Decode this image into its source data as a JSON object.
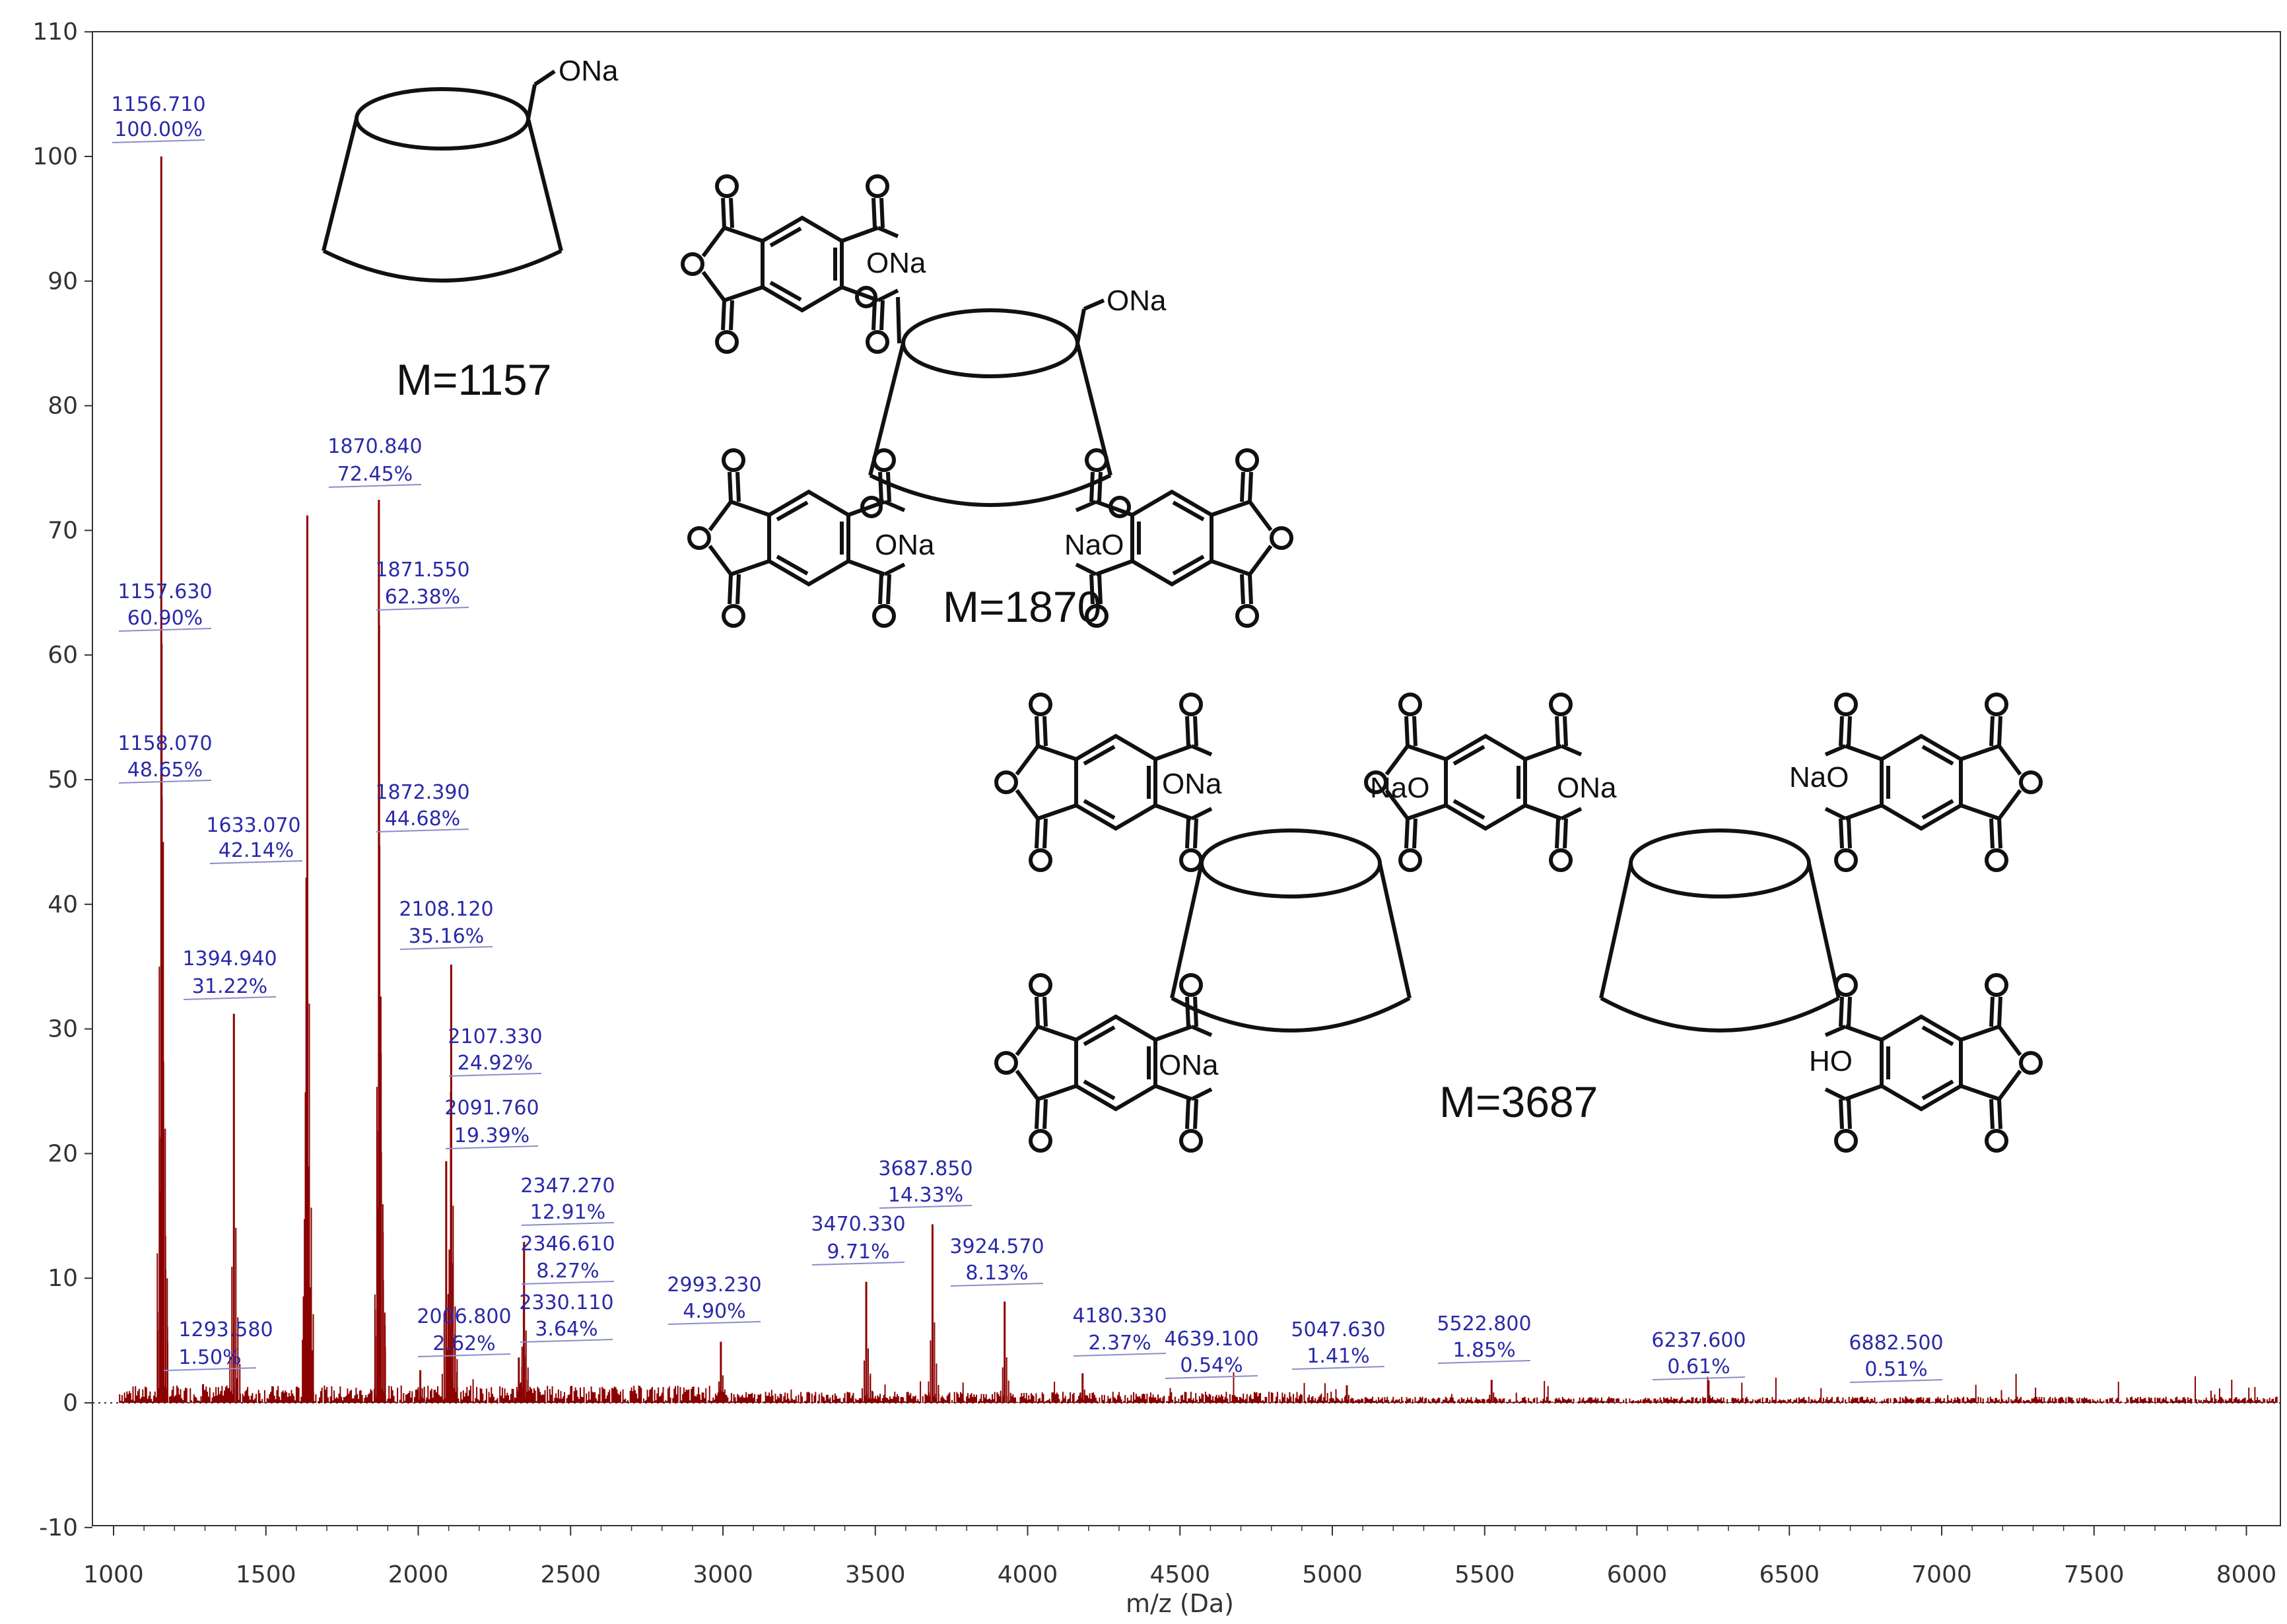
{
  "colors": {
    "spectrum": "#8b0000",
    "label": "#2a2aa8",
    "axis": "#333333"
  },
  "chart_data": {
    "type": "line",
    "title": "",
    "xlabel": "m/z (Da)",
    "ylabel": "",
    "xlim": [
      1000,
      8100
    ],
    "ylim": [
      -10,
      110
    ],
    "x_ticks": [
      "1000",
      "1500",
      "2000",
      "2500",
      "3000",
      "3500",
      "4000",
      "4500",
      "5000",
      "5500",
      "6000",
      "6500",
      "7000",
      "7500",
      "8000"
    ],
    "y_ticks": [
      "-10",
      "0",
      "10",
      "20",
      "30",
      "40",
      "50",
      "60",
      "70",
      "80",
      "90",
      "100",
      "110"
    ],
    "peaks": [
      {
        "mz": 1156.71,
        "intensity": 100.0
      },
      {
        "mz": 1157.63,
        "intensity": 60.9
      },
      {
        "mz": 1158.07,
        "intensity": 48.65
      },
      {
        "mz": 1293.58,
        "intensity": 1.5
      },
      {
        "mz": 1394.94,
        "intensity": 31.22
      },
      {
        "mz": 1633.07,
        "intensity": 42.14
      },
      {
        "mz": 1636.0,
        "intensity": 71.2
      },
      {
        "mz": 1870.84,
        "intensity": 72.45
      },
      {
        "mz": 1871.55,
        "intensity": 62.38
      },
      {
        "mz": 1872.39,
        "intensity": 44.68
      },
      {
        "mz": 2006.8,
        "intensity": 2.62
      },
      {
        "mz": 2091.76,
        "intensity": 19.39
      },
      {
        "mz": 2107.33,
        "intensity": 24.92
      },
      {
        "mz": 2108.12,
        "intensity": 35.16
      },
      {
        "mz": 2330.11,
        "intensity": 3.64
      },
      {
        "mz": 2346.61,
        "intensity": 8.27
      },
      {
        "mz": 2347.27,
        "intensity": 12.91
      },
      {
        "mz": 2993.23,
        "intensity": 4.9
      },
      {
        "mz": 3470.33,
        "intensity": 9.71
      },
      {
        "mz": 3687.85,
        "intensity": 14.33
      },
      {
        "mz": 3924.57,
        "intensity": 8.13
      },
      {
        "mz": 4180.33,
        "intensity": 2.37
      },
      {
        "mz": 4639.1,
        "intensity": 0.54
      },
      {
        "mz": 5047.63,
        "intensity": 1.41
      },
      {
        "mz": 5522.8,
        "intensity": 1.85
      },
      {
        "mz": 6237.6,
        "intensity": 0.61
      },
      {
        "mz": 6882.5,
        "intensity": 0.51
      }
    ],
    "labels": [
      {
        "text": "1156.710",
        "pct": "100.00%"
      },
      {
        "text": "1157.630",
        "pct": "60.90%"
      },
      {
        "text": "1158.070",
        "pct": "48.65%"
      },
      {
        "text": "1633.070",
        "pct": "42.14%"
      },
      {
        "text": "1394.940",
        "pct": "31.22%"
      },
      {
        "text": "1293.580",
        "pct": "1.50%"
      },
      {
        "text": "1870.840",
        "pct": "72.45%"
      },
      {
        "text": "1871.550",
        "pct": "62.38%"
      },
      {
        "text": "1872.390",
        "pct": "44.68%"
      },
      {
        "text": "2108.120",
        "pct": "35.16%"
      },
      {
        "text": "2107.330",
        "pct": "24.92%"
      },
      {
        "text": "2091.760",
        "pct": "19.39%"
      },
      {
        "text": "2006.800",
        "pct": "2.62%"
      },
      {
        "text": "2347.270",
        "pct": "12.91%"
      },
      {
        "text": "2346.610",
        "pct": "8.27%"
      },
      {
        "text": "2330.110",
        "pct": "3.64%"
      },
      {
        "text": "2993.230",
        "pct": "4.90%"
      },
      {
        "text": "3470.330",
        "pct": "9.71%"
      },
      {
        "text": "3687.850",
        "pct": "14.33%"
      },
      {
        "text": "3924.570",
        "pct": "8.13%"
      },
      {
        "text": "4180.330",
        "pct": "2.37%"
      },
      {
        "text": "4639.100",
        "pct": "0.54%"
      },
      {
        "text": "5047.630",
        "pct": "1.41%"
      },
      {
        "text": "5522.800",
        "pct": "1.85%"
      },
      {
        "text": "6237.600",
        "pct": "0.61%"
      },
      {
        "text": "6882.500",
        "pct": "0.51%"
      }
    ]
  },
  "structures": {
    "s1": {
      "group": "ONa",
      "mass": "M=1157"
    },
    "s2": {
      "group_top": "ONa",
      "ona1": "ONa",
      "ona2": "ONa",
      "nao": "NaO",
      "mass": "M=1870"
    },
    "s3": {
      "ona1": "ONa",
      "nao1": "NaO",
      "ona2": "ONa",
      "nao2": "NaO",
      "ona3": "ONa",
      "ho": "HO",
      "mass": "M=3687"
    },
    "atom_O": "O"
  }
}
